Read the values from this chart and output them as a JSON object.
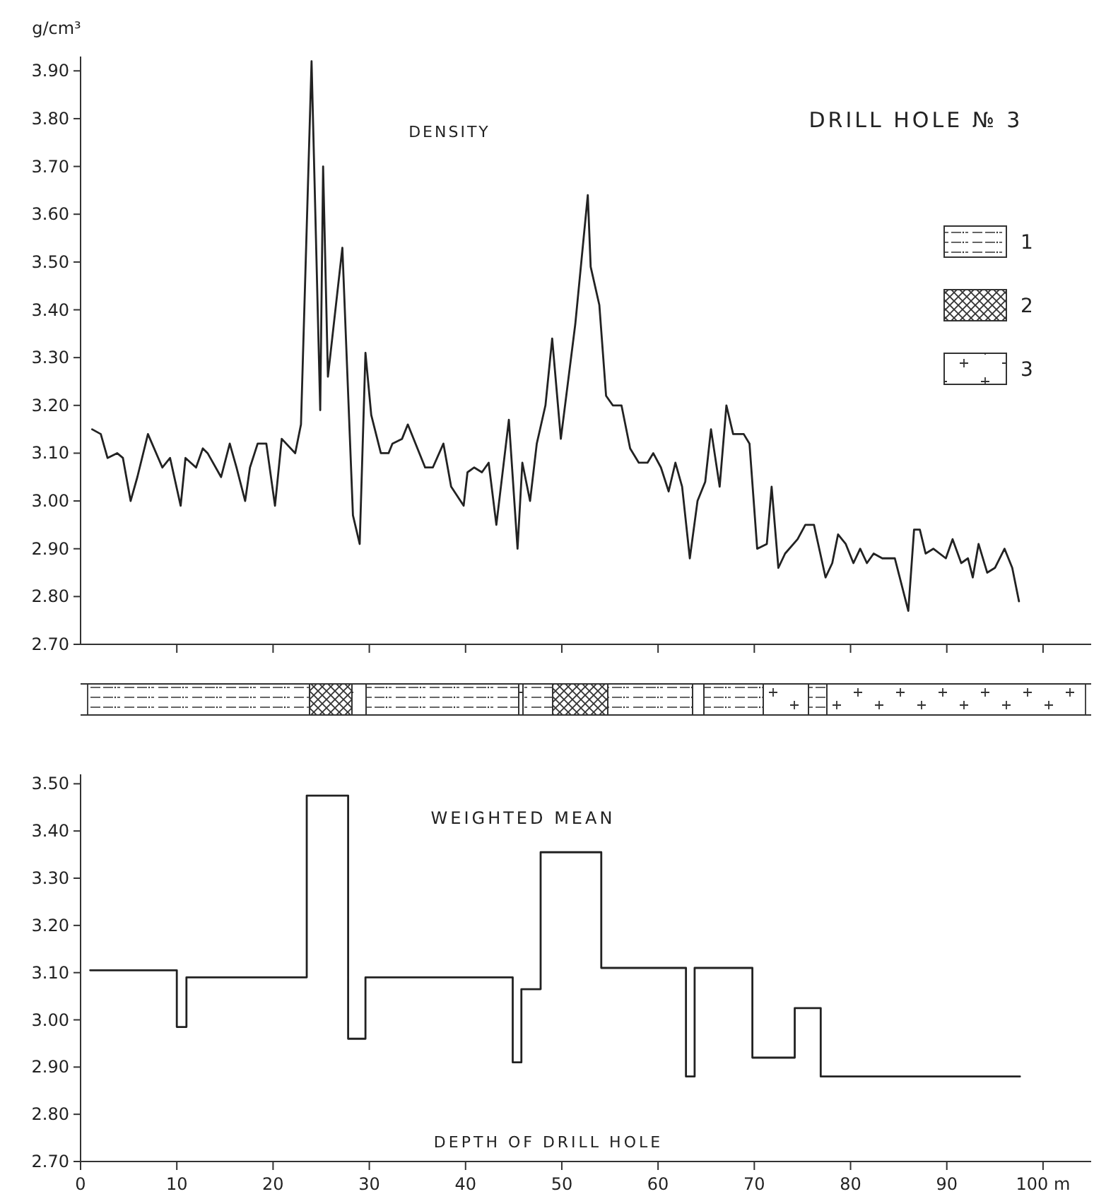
{
  "chart_data": [
    {
      "type": "line",
      "title": "DRILL HOLE № 3",
      "subtitle": "DENSITY",
      "ylabel": "g/cm³",
      "xlim": [
        0,
        105
      ],
      "ylim": [
        2.7,
        3.93
      ],
      "xticks": [
        {
          "value": 10,
          "label": null
        },
        {
          "value": 20,
          "label": null
        },
        {
          "value": 30,
          "label": null
        },
        {
          "value": 40,
          "label": null
        },
        {
          "value": 50,
          "label": null
        },
        {
          "value": 60,
          "label": null
        },
        {
          "value": 70,
          "label": null
        },
        {
          "value": 80,
          "label": null
        },
        {
          "value": 90,
          "label": null
        },
        {
          "value": 100,
          "label": null
        }
      ],
      "yticks": [
        {
          "value": 2.7,
          "label": "2.70"
        },
        {
          "value": 2.8,
          "label": "2.80"
        },
        {
          "value": 2.9,
          "label": "2.90"
        },
        {
          "value": 3.0,
          "label": "3.00"
        },
        {
          "value": 3.1,
          "label": "3.10"
        },
        {
          "value": 3.2,
          "label": "3.20"
        },
        {
          "value": 3.3,
          "label": "3.30"
        },
        {
          "value": 3.4,
          "label": "3.40"
        },
        {
          "value": 3.5,
          "label": "3.50"
        },
        {
          "value": 3.6,
          "label": "3.60"
        },
        {
          "value": 3.7,
          "label": "3.70"
        },
        {
          "value": 3.8,
          "label": "3.80"
        },
        {
          "value": 3.9,
          "label": "3.90"
        }
      ],
      "tick_labels": "y",
      "annotations": [
        "1",
        "2",
        "3"
      ],
      "x": [
        1.2,
        2.1,
        2.8,
        3.8,
        4.4,
        5.2,
        5.9,
        7.0,
        8.5,
        9.3,
        10.4,
        10.9,
        12.0,
        12.7,
        13.2,
        14.6,
        15.5,
        16.2,
        17.1,
        17.6,
        18.4,
        19.3,
        20.2,
        20.9,
        22.3,
        22.9,
        24.0,
        24.9,
        25.2,
        25.7,
        27.2,
        28.3,
        29.0,
        29.6,
        30.2,
        31.2,
        32.0,
        32.4,
        33.4,
        34.0,
        35.8,
        36.6,
        37.7,
        38.5,
        39.8,
        40.2,
        40.9,
        41.7,
        42.4,
        43.2,
        44.5,
        45.4,
        45.9,
        46.7,
        47.4,
        48.3,
        49.0,
        49.9,
        51.4,
        52.7,
        53.0,
        53.9,
        54.6,
        55.3,
        56.2,
        57.1,
        58.0,
        58.9,
        59.5,
        60.3,
        61.1,
        61.8,
        62.5,
        63.3,
        64.1,
        64.9,
        65.5,
        66.4,
        67.1,
        67.8,
        68.9,
        69.5,
        70.3,
        71.3,
        71.8,
        72.5,
        73.2,
        74.5,
        75.3,
        76.2,
        77.4,
        78.1,
        78.7,
        79.5,
        80.3,
        81.0,
        81.7,
        82.4,
        83.3,
        84.6,
        86.0,
        86.6,
        87.2,
        87.8,
        88.6,
        89.9,
        90.6,
        91.5,
        92.2,
        92.7,
        93.3,
        94.2,
        95.0,
        96.0,
        96.8,
        97.5
      ],
      "series": [
        {
          "color": "#222222",
          "values": [
            3.15,
            3.14,
            3.09,
            3.1,
            3.09,
            3.0,
            3.05,
            3.14,
            3.07,
            3.09,
            2.99,
            3.09,
            3.07,
            3.11,
            3.1,
            3.05,
            3.12,
            3.07,
            3.0,
            3.07,
            3.12,
            3.12,
            2.99,
            3.13,
            3.1,
            3.16,
            3.92,
            3.19,
            3.7,
            3.26,
            3.53,
            2.97,
            2.91,
            3.31,
            3.18,
            3.1,
            3.1,
            3.12,
            3.13,
            3.16,
            3.07,
            3.07,
            3.12,
            3.03,
            2.99,
            3.06,
            3.07,
            3.06,
            3.08,
            2.95,
            3.17,
            2.9,
            3.08,
            3.0,
            3.12,
            3.2,
            3.34,
            3.13,
            3.37,
            3.64,
            3.49,
            3.41,
            3.22,
            3.2,
            3.2,
            3.11,
            3.08,
            3.08,
            3.1,
            3.07,
            3.02,
            3.08,
            3.03,
            2.88,
            3.0,
            3.04,
            3.15,
            3.03,
            3.2,
            3.14,
            3.14,
            3.12,
            2.9,
            2.91,
            3.03,
            2.86,
            2.89,
            2.92,
            2.95,
            2.95,
            2.84,
            2.87,
            2.93,
            2.91,
            2.87,
            2.9,
            2.87,
            2.89,
            2.88,
            2.88,
            2.77,
            2.94,
            2.94,
            2.89,
            2.9,
            2.88,
            2.92,
            2.87,
            2.88,
            2.84,
            2.91,
            2.85,
            2.86,
            2.9,
            2.86,
            2.79
          ]
        }
      ]
    },
    {
      "type": "step",
      "title": "WEIGHTED MEAN",
      "xlabel": "DEPTH OF DRILL HOLE",
      "xlim": [
        0,
        105
      ],
      "ylim": [
        2.7,
        3.52
      ],
      "xticks": [
        0,
        10,
        20,
        30,
        40,
        50,
        60,
        70,
        80,
        90,
        {
          "value": 100,
          "label": "100 m"
        }
      ],
      "yticks": [
        {
          "value": 2.7,
          "label": "2.70"
        },
        {
          "value": 2.8,
          "label": "2.80"
        },
        {
          "value": 2.9,
          "label": "2.90"
        },
        {
          "value": 3.0,
          "label": "3.00"
        },
        {
          "value": 3.1,
          "label": "3.10"
        },
        {
          "value": 3.2,
          "label": "3.20"
        },
        {
          "value": 3.3,
          "label": "3.30"
        },
        {
          "value": 3.4,
          "label": "3.40"
        },
        {
          "value": 3.5,
          "label": "3.50"
        }
      ],
      "x": [
        1.0,
        10,
        11,
        23.5,
        27.8,
        29.6,
        44.9,
        45.8,
        47.8,
        54.1,
        62.9,
        63.8,
        69.8,
        74.2,
        76.9,
        97.6
      ],
      "series": [
        {
          "color": "#222222",
          "values": [
            3.105,
            2.985,
            3.09,
            3.475,
            2.96,
            3.09,
            2.91,
            3.065,
            3.355,
            3.11,
            2.88,
            3.11,
            2.92,
            3.025,
            2.88,
            2.88
          ]
        }
      ]
    }
  ]
}
